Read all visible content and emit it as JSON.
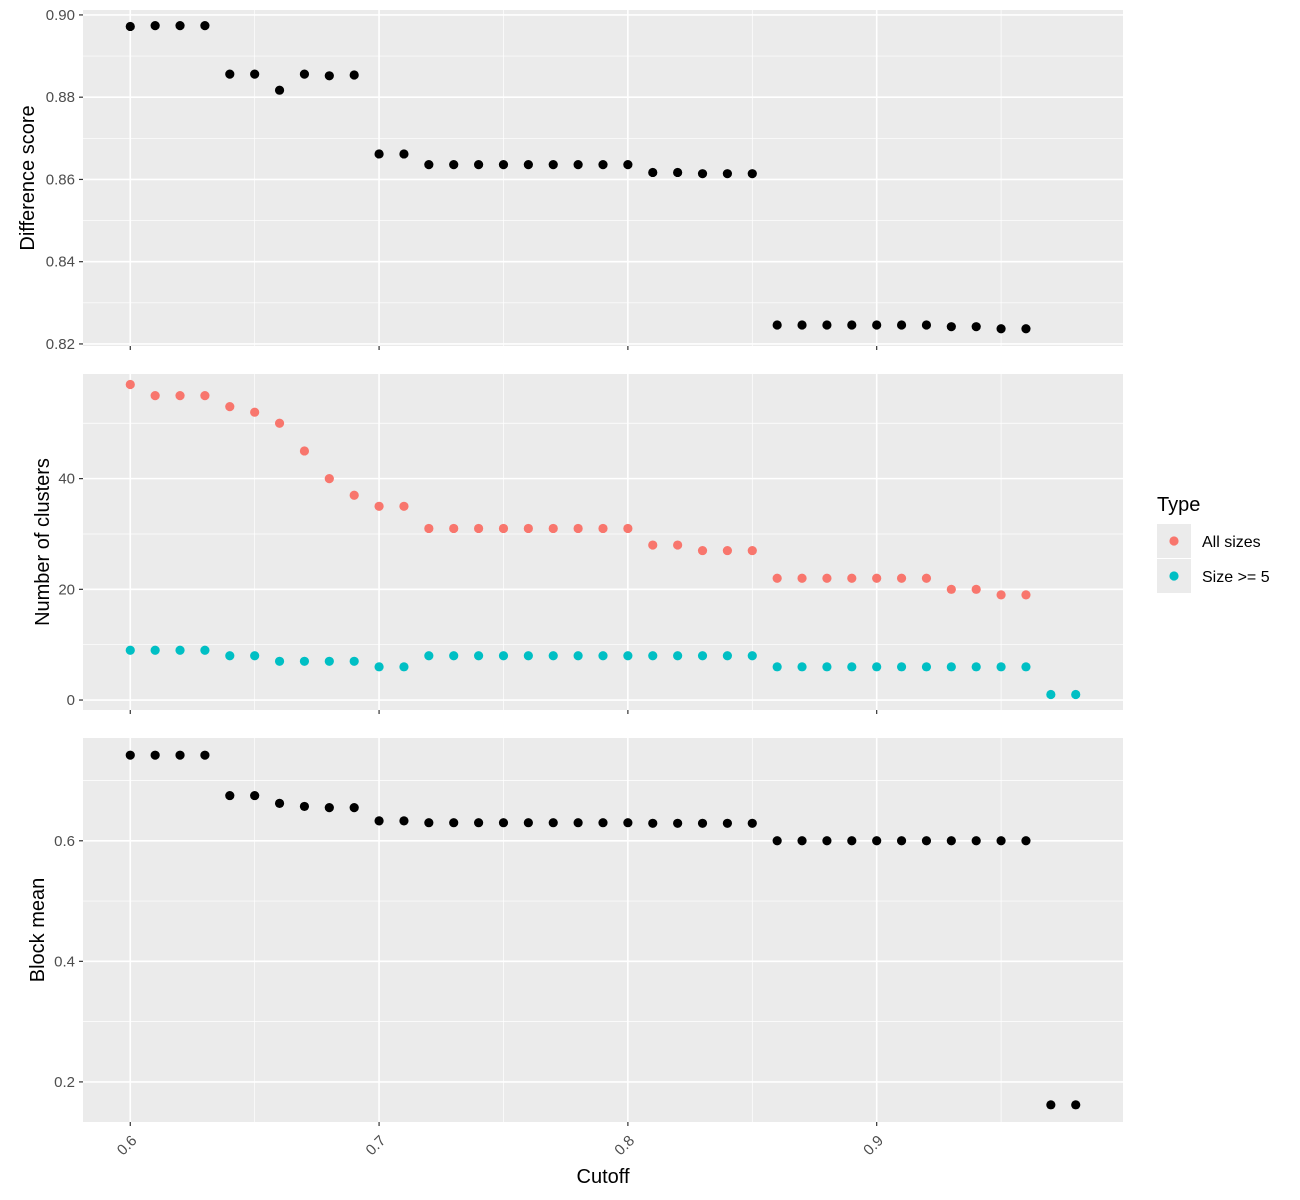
{
  "chart_data": [
    {
      "type": "scatter",
      "title": "",
      "ylabel": "Difference score",
      "xlim": [
        0.581,
        0.999
      ],
      "ylim": [
        0.8195,
        0.9012
      ],
      "yticks": [
        0.82,
        0.84,
        0.86,
        0.88,
        0.9
      ],
      "ytick_labels": [
        "0.82",
        "0.84",
        "0.86",
        "0.88",
        "0.90"
      ],
      "series": [
        {
          "color": "#000000",
          "x": [
            0.6,
            0.61,
            0.62,
            0.63,
            0.64,
            0.65,
            0.66,
            0.67,
            0.68,
            0.69,
            0.7,
            0.71,
            0.72,
            0.73,
            0.74,
            0.75,
            0.76,
            0.77,
            0.78,
            0.79,
            0.8,
            0.81,
            0.82,
            0.83,
            0.84,
            0.85,
            0.86,
            0.87,
            0.88,
            0.89,
            0.9,
            0.91,
            0.92,
            0.93,
            0.94,
            0.95,
            0.96
          ],
          "y": [
            0.8972,
            0.8974,
            0.8974,
            0.8974,
            0.8856,
            0.8856,
            0.8817,
            0.8856,
            0.8852,
            0.8854,
            0.8662,
            0.8662,
            0.8636,
            0.8636,
            0.8636,
            0.8636,
            0.8636,
            0.8636,
            0.8636,
            0.8636,
            0.8636,
            0.8617,
            0.8617,
            0.8614,
            0.8614,
            0.8614,
            0.8246,
            0.8246,
            0.8246,
            0.8246,
            0.8246,
            0.8246,
            0.8246,
            0.8242,
            0.8242,
            0.8237,
            0.8237
          ]
        }
      ]
    },
    {
      "type": "scatter",
      "title": "",
      "ylabel": "Number of clusters",
      "xlim": [
        0.581,
        0.999
      ],
      "ylim": [
        -1.8,
        58.9
      ],
      "yticks": [
        0,
        20,
        40
      ],
      "ytick_labels": [
        "0",
        "20",
        "40"
      ],
      "series": [
        {
          "name": "All sizes",
          "color": "#F8766D",
          "x": [
            0.6,
            0.61,
            0.62,
            0.63,
            0.64,
            0.65,
            0.66,
            0.67,
            0.68,
            0.69,
            0.7,
            0.71,
            0.72,
            0.73,
            0.74,
            0.75,
            0.76,
            0.77,
            0.78,
            0.79,
            0.8,
            0.81,
            0.82,
            0.83,
            0.84,
            0.85,
            0.86,
            0.87,
            0.88,
            0.89,
            0.9,
            0.91,
            0.92,
            0.93,
            0.94,
            0.95,
            0.96
          ],
          "y": [
            57,
            55,
            55,
            55,
            53,
            52,
            50,
            45,
            40,
            37,
            35,
            35,
            31,
            31,
            31,
            31,
            31,
            31,
            31,
            31,
            31,
            28,
            28,
            27,
            27,
            27,
            22,
            22,
            22,
            22,
            22,
            22,
            22,
            20,
            20,
            19,
            19
          ]
        },
        {
          "name": "Size >= 5",
          "color": "#00BFC4",
          "x": [
            0.6,
            0.61,
            0.62,
            0.63,
            0.64,
            0.65,
            0.66,
            0.67,
            0.68,
            0.69,
            0.7,
            0.71,
            0.72,
            0.73,
            0.74,
            0.75,
            0.76,
            0.77,
            0.78,
            0.79,
            0.8,
            0.81,
            0.82,
            0.83,
            0.84,
            0.85,
            0.86,
            0.87,
            0.88,
            0.89,
            0.9,
            0.91,
            0.92,
            0.93,
            0.94,
            0.95,
            0.96,
            0.97,
            0.98
          ],
          "y": [
            9,
            9,
            9,
            9,
            8,
            8,
            7,
            7,
            7,
            7,
            6,
            6,
            8,
            8,
            8,
            8,
            8,
            8,
            8,
            8,
            8,
            8,
            8,
            8,
            8,
            8,
            6,
            6,
            6,
            6,
            6,
            6,
            6,
            6,
            6,
            6,
            6,
            1,
            1
          ]
        }
      ]
    },
    {
      "type": "scatter",
      "title": "",
      "ylabel": "Block mean",
      "xlabel": "Cutoff",
      "xlim": [
        0.581,
        0.999
      ],
      "ylim": [
        0.1335,
        0.7705
      ],
      "yticks": [
        0.2,
        0.4,
        0.6
      ],
      "ytick_labels": [
        "0.2",
        "0.4",
        "0.6"
      ],
      "xticks": [
        0.6,
        0.7,
        0.8,
        0.9
      ],
      "xtick_labels": [
        "0.6",
        "0.7",
        "0.8",
        "0.9"
      ],
      "series": [
        {
          "color": "#000000",
          "x": [
            0.6,
            0.61,
            0.62,
            0.63,
            0.64,
            0.65,
            0.66,
            0.67,
            0.68,
            0.69,
            0.7,
            0.71,
            0.72,
            0.73,
            0.74,
            0.75,
            0.76,
            0.77,
            0.78,
            0.79,
            0.8,
            0.81,
            0.82,
            0.83,
            0.84,
            0.85,
            0.86,
            0.87,
            0.88,
            0.89,
            0.9,
            0.91,
            0.92,
            0.93,
            0.94,
            0.95,
            0.96,
            0.97,
            0.98
          ],
          "y": [
            0.742,
            0.742,
            0.742,
            0.742,
            0.675,
            0.675,
            0.662,
            0.657,
            0.655,
            0.655,
            0.633,
            0.633,
            0.63,
            0.63,
            0.63,
            0.63,
            0.63,
            0.63,
            0.63,
            0.63,
            0.63,
            0.629,
            0.629,
            0.629,
            0.629,
            0.629,
            0.6,
            0.6,
            0.6,
            0.6,
            0.6,
            0.6,
            0.6,
            0.6,
            0.6,
            0.6,
            0.6,
            0.162,
            0.162
          ]
        }
      ]
    }
  ],
  "legend": {
    "title": "Type",
    "position": "right",
    "items": [
      {
        "label": "All sizes",
        "color": "#F8766D"
      },
      {
        "label": "Size >= 5",
        "color": "#00BFC4"
      }
    ]
  },
  "theme": {
    "panel_background": "#EBEBEB",
    "grid_color": "#FFFFFF"
  }
}
